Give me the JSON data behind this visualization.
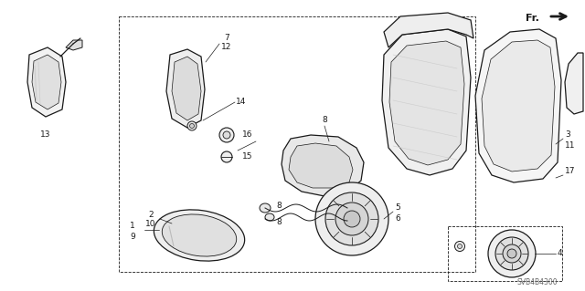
{
  "bg_color": "#ffffff",
  "line_color": "#1a1a1a",
  "diagram_code": "SVB4B4300",
  "figsize": [
    6.4,
    3.19
  ],
  "dpi": 100
}
